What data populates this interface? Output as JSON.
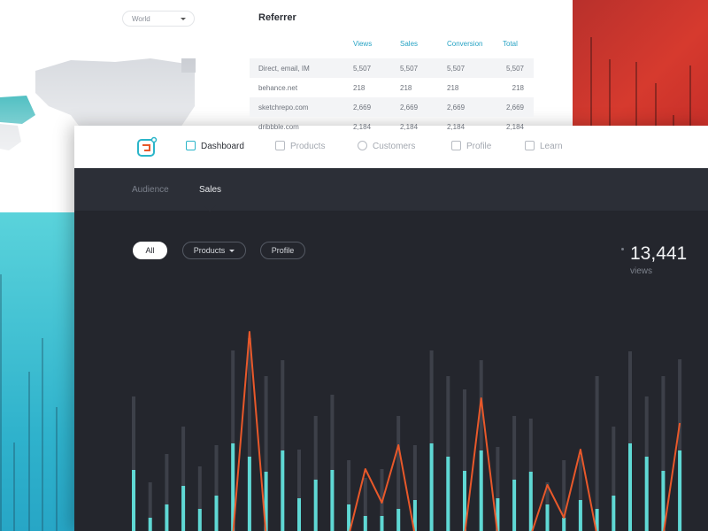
{
  "map_panel": {
    "region_select": "World"
  },
  "referrer": {
    "title": "Referrer",
    "columns": [
      "Views",
      "Sales",
      "Conversion",
      "Total"
    ],
    "rows": [
      [
        "Direct, email, IM",
        "5,507",
        "5,507",
        "5,507",
        "5,507"
      ],
      [
        "behance.net",
        "218",
        "218",
        "218",
        "218"
      ],
      [
        "sketchrepo.com",
        "2,669",
        "2,669",
        "2,669",
        "2,669"
      ],
      [
        "dribbble.com",
        "2,184",
        "2,184",
        "2,184",
        "2,184"
      ]
    ]
  },
  "nav": {
    "items": [
      "Dashboard",
      "Products",
      "Customers",
      "Profile",
      "Learn"
    ],
    "active": 0
  },
  "tabs": {
    "items": [
      "Audience",
      "Sales"
    ],
    "active": 1
  },
  "filters": {
    "items": [
      "All",
      "Products",
      "Profile"
    ],
    "active": 0
  },
  "stat": {
    "value": "13,441",
    "label": "views"
  },
  "chart_data": {
    "type": "bar",
    "series": [
      {
        "kind": "bar",
        "color": "#3d4049",
        "values": [
          157,
          60,
          92,
          123,
          78,
          102,
          209,
          223,
          180,
          198,
          97,
          135,
          159,
          85,
          65,
          75,
          135,
          102,
          209,
          180,
          165,
          198,
          100,
          135,
          132,
          60,
          85,
          90,
          180,
          123,
          208,
          157,
          180,
          199
        ]
      },
      {
        "kind": "bar",
        "color": "#5fd8d4",
        "values": [
          74,
          20,
          35,
          56,
          30,
          45,
          104,
          89,
          72,
          96,
          42,
          63,
          74,
          35,
          22,
          22,
          30,
          40,
          104,
          89,
          73,
          96,
          42,
          63,
          72,
          35,
          20,
          40,
          30,
          45,
          104,
          89,
          73,
          96
        ]
      },
      {
        "kind": "line",
        "color": "#e8582a",
        "values": [
          null,
          null,
          null,
          null,
          null,
          null,
          0,
          230,
          0,
          null,
          null,
          null,
          null,
          0,
          75,
          37,
          102,
          0,
          null,
          null,
          0,
          155,
          0,
          null,
          0,
          57,
          20,
          97,
          0,
          null,
          null,
          null,
          0,
          127
        ]
      }
    ]
  }
}
